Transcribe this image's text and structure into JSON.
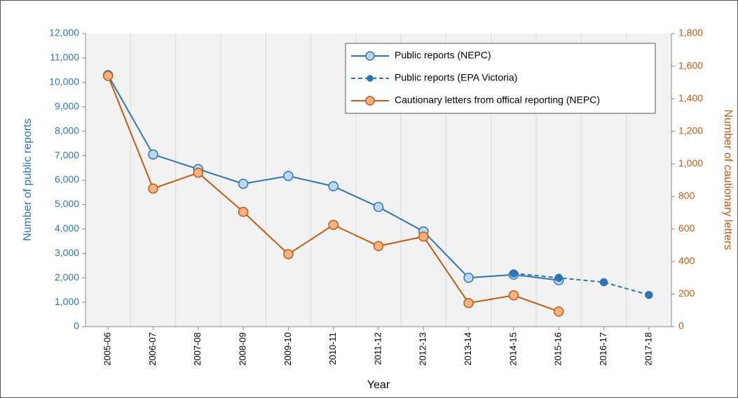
{
  "chart_data": {
    "type": "line",
    "x_label": "Year",
    "y_label": "Number of public reports",
    "y2_label": "Number of cautionary letters",
    "categories": [
      "2005-06",
      "2006-07",
      "2007-08",
      "2008-09",
      "2009-10",
      "2010-11",
      "2011-12",
      "2012-13",
      "2013-14",
      "2014-15",
      "2015-16",
      "2016-17",
      "2017-18"
    ],
    "series": [
      {
        "name": "Public reports (NEPC)",
        "color": "#2e75b6",
        "marker_fill": "#bdd7ee",
        "dashed": false,
        "values": [
          10300,
          7050,
          6450,
          5850,
          6170,
          5750,
          4900,
          3900,
          2000,
          2130,
          1900,
          null,
          null
        ]
      },
      {
        "name": "Public reports (EPA Victoria)",
        "color": "#2e75b6",
        "marker_fill": "#2e75b6",
        "dashed": true,
        "values": [
          null,
          null,
          null,
          null,
          null,
          null,
          null,
          null,
          null,
          2180,
          2000,
          1820,
          1300
        ]
      },
      {
        "name": "Cautionary letters from offical reporting (NEPC)",
        "color": "#c55a11",
        "marker_fill": "#f4b183",
        "dashed": false,
        "axis": "y2",
        "values": [
          1540,
          848,
          945,
          705,
          445,
          625,
          495,
          553,
          145,
          192,
          93,
          null,
          null
        ]
      }
    ],
    "ylim": [
      0,
      12000
    ],
    "yticks": [
      0,
      {
        "value": 1000,
        "label": "1,000"
      },
      {
        "value": 2000,
        "label": "2,000"
      },
      {
        "value": 3000,
        "label": "3,000"
      },
      {
        "value": 4000,
        "label": "4,000"
      },
      {
        "value": 5000,
        "label": "5,000"
      },
      {
        "value": 6000,
        "label": "6,000"
      },
      {
        "value": 7000,
        "label": "7,000"
      },
      {
        "value": 8000,
        "label": "8,000"
      },
      {
        "value": 9000,
        "label": "9,000"
      },
      {
        "value": 10000,
        "label": "10,000"
      },
      {
        "value": 11000,
        "label": "11,000"
      },
      {
        "value": 12000,
        "label": "12,000"
      }
    ],
    "y2lim": [
      0,
      1800
    ],
    "y2ticks": [
      0,
      200,
      400,
      600,
      800,
      {
        "value": 1000,
        "label": "1,000"
      },
      {
        "value": 1200,
        "label": "1,200"
      },
      {
        "value": 1400,
        "label": "1,400"
      },
      {
        "value": 1600,
        "label": "1,600"
      },
      {
        "value": 1800,
        "label": "1,800"
      }
    ],
    "y_color": "#2e75b6",
    "y2_color": "#c55a11",
    "grid": true,
    "legend": "top-right"
  }
}
